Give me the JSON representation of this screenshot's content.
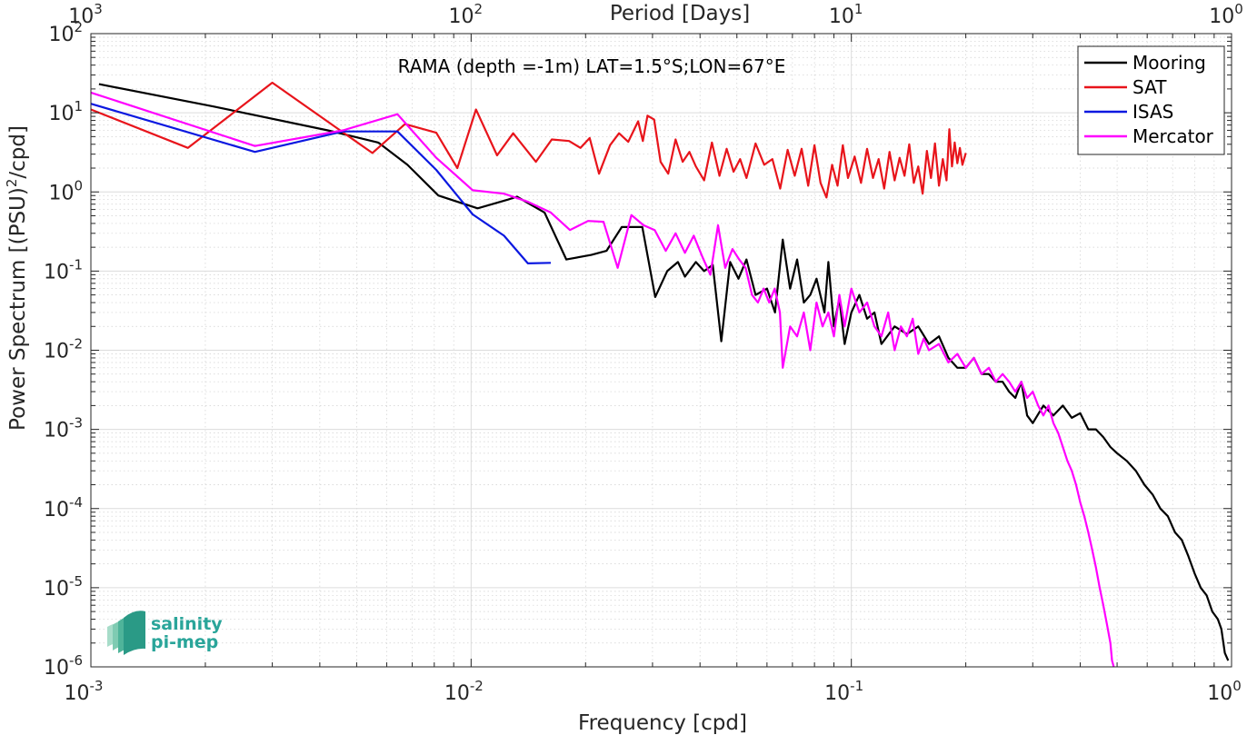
{
  "chart_data": {
    "type": "line",
    "title": "RAMA (depth =-1m) LAT=1.5°S;LON=67°E",
    "xlabel": "Frequency [cpd]",
    "ylabel": "Power Spectrum [(PSU)²/cpd]",
    "ylabel_parts": {
      "pre": "Power Spectrum [(PSU)",
      "sup": "2",
      "post": "/cpd]"
    },
    "top_xlabel": "Period [Days]",
    "xscale": "log",
    "yscale": "log",
    "xlim": [
      0.001,
      1
    ],
    "ylim": [
      1e-06,
      100
    ],
    "grid": true,
    "legend_position": "top-right",
    "x_ticks": [
      {
        "value": 0.001,
        "base": "10",
        "exp": "-3"
      },
      {
        "value": 0.01,
        "base": "10",
        "exp": "-2"
      },
      {
        "value": 0.1,
        "base": "10",
        "exp": "-1"
      },
      {
        "value": 1,
        "base": "10",
        "exp": "0"
      }
    ],
    "top_ticks": [
      {
        "value": 0.001,
        "base": "10",
        "exp": "3"
      },
      {
        "value": 0.01,
        "base": "10",
        "exp": "2"
      },
      {
        "value": 0.1,
        "base": "10",
        "exp": "1"
      },
      {
        "value": 1,
        "base": "10",
        "exp": "0"
      }
    ],
    "y_ticks": [
      {
        "value": 1e-06,
        "base": "10",
        "exp": "-6"
      },
      {
        "value": 1e-05,
        "base": "10",
        "exp": "-5"
      },
      {
        "value": 0.0001,
        "base": "10",
        "exp": "-4"
      },
      {
        "value": 0.001,
        "base": "10",
        "exp": "-3"
      },
      {
        "value": 0.01,
        "base": "10",
        "exp": "-2"
      },
      {
        "value": 0.1,
        "base": "10",
        "exp": "-1"
      },
      {
        "value": 1,
        "base": "10",
        "exp": "0"
      },
      {
        "value": 10,
        "base": "10",
        "exp": "1"
      },
      {
        "value": 100,
        "base": "10",
        "exp": "2"
      }
    ],
    "series": [
      {
        "name": "Mooring",
        "color": "#000000",
        "points": [
          [
            0.00105,
            23
          ],
          [
            0.0021,
            12
          ],
          [
            0.0042,
            6
          ],
          [
            0.0057,
            4.2
          ],
          [
            0.0068,
            2.2
          ],
          [
            0.0082,
            0.9
          ],
          [
            0.0104,
            0.62
          ],
          [
            0.0125,
            0.8
          ],
          [
            0.0132,
            0.87
          ],
          [
            0.0156,
            0.55
          ],
          [
            0.0178,
            0.14
          ],
          [
            0.0207,
            0.16
          ],
          [
            0.0227,
            0.18
          ],
          [
            0.0249,
            0.36
          ],
          [
            0.0282,
            0.36
          ],
          [
            0.0305,
            0.047
          ],
          [
            0.0328,
            0.1
          ],
          [
            0.035,
            0.13
          ],
          [
            0.0365,
            0.085
          ],
          [
            0.039,
            0.13
          ],
          [
            0.041,
            0.1
          ],
          [
            0.0432,
            0.12
          ],
          [
            0.0455,
            0.013
          ],
          [
            0.048,
            0.13
          ],
          [
            0.0505,
            0.08
          ],
          [
            0.053,
            0.14
          ],
          [
            0.056,
            0.05
          ],
          [
            0.06,
            0.06
          ],
          [
            0.063,
            0.03
          ],
          [
            0.066,
            0.25
          ],
          [
            0.069,
            0.06
          ],
          [
            0.072,
            0.14
          ],
          [
            0.075,
            0.04
          ],
          [
            0.078,
            0.05
          ],
          [
            0.081,
            0.08
          ],
          [
            0.085,
            0.03
          ],
          [
            0.087,
            0.13
          ],
          [
            0.09,
            0.02
          ],
          [
            0.093,
            0.045
          ],
          [
            0.096,
            0.012
          ],
          [
            0.1,
            0.03
          ],
          [
            0.105,
            0.05
          ],
          [
            0.11,
            0.025
          ],
          [
            0.115,
            0.03
          ],
          [
            0.12,
            0.012
          ],
          [
            0.13,
            0.02
          ],
          [
            0.14,
            0.016
          ],
          [
            0.15,
            0.02
          ],
          [
            0.16,
            0.012
          ],
          [
            0.17,
            0.015
          ],
          [
            0.18,
            0.008
          ],
          [
            0.19,
            0.006
          ],
          [
            0.2,
            0.006
          ],
          [
            0.21,
            0.008
          ],
          [
            0.22,
            0.005
          ],
          [
            0.23,
            0.005
          ],
          [
            0.24,
            0.004
          ],
          [
            0.25,
            0.004
          ],
          [
            0.26,
            0.003
          ],
          [
            0.27,
            0.0025
          ],
          [
            0.28,
            0.004
          ],
          [
            0.29,
            0.0015
          ],
          [
            0.3,
            0.0012
          ],
          [
            0.32,
            0.002
          ],
          [
            0.34,
            0.0015
          ],
          [
            0.36,
            0.002
          ],
          [
            0.38,
            0.0014
          ],
          [
            0.4,
            0.0016
          ],
          [
            0.42,
            0.001
          ],
          [
            0.44,
            0.001
          ],
          [
            0.46,
            0.0008
          ],
          [
            0.48,
            0.0006
          ],
          [
            0.5,
            0.0005
          ],
          [
            0.53,
            0.0004
          ],
          [
            0.56,
            0.0003
          ],
          [
            0.59,
            0.0002
          ],
          [
            0.62,
            0.00015
          ],
          [
            0.65,
            0.0001
          ],
          [
            0.68,
            8e-05
          ],
          [
            0.71,
            5e-05
          ],
          [
            0.74,
            4e-05
          ],
          [
            0.77,
            2.5e-05
          ],
          [
            0.8,
            1.5e-05
          ],
          [
            0.83,
            1e-05
          ],
          [
            0.86,
            8e-06
          ],
          [
            0.89,
            5e-06
          ],
          [
            0.92,
            4e-06
          ],
          [
            0.94,
            3e-06
          ],
          [
            0.96,
            1.5e-06
          ],
          [
            0.98,
            1.2e-06
          ]
        ]
      },
      {
        "name": "SAT",
        "color": "#e8141b",
        "points": [
          [
            0.001,
            11
          ],
          [
            0.0018,
            3.6
          ],
          [
            0.003,
            24
          ],
          [
            0.0055,
            3.1
          ],
          [
            0.0067,
            7.2
          ],
          [
            0.0081,
            5.6
          ],
          [
            0.0092,
            2
          ],
          [
            0.0103,
            11
          ],
          [
            0.0117,
            2.9
          ],
          [
            0.0129,
            5.5
          ],
          [
            0.0148,
            2.4
          ],
          [
            0.0163,
            4.6
          ],
          [
            0.0181,
            4.4
          ],
          [
            0.0194,
            3.6
          ],
          [
            0.0205,
            4.8
          ],
          [
            0.0217,
            1.7
          ],
          [
            0.0232,
            3.9
          ],
          [
            0.0245,
            5.5
          ],
          [
            0.0259,
            4.3
          ],
          [
            0.0275,
            7.8
          ],
          [
            0.0283,
            4.4
          ],
          [
            0.0291,
            9.2
          ],
          [
            0.0303,
            8.2
          ],
          [
            0.0315,
            2.4
          ],
          [
            0.033,
            1.7
          ],
          [
            0.0345,
            4.6
          ],
          [
            0.036,
            2.4
          ],
          [
            0.0375,
            3.2
          ],
          [
            0.039,
            2.1
          ],
          [
            0.041,
            1.4
          ],
          [
            0.043,
            4.2
          ],
          [
            0.045,
            1.6
          ],
          [
            0.047,
            3.5
          ],
          [
            0.049,
            1.8
          ],
          [
            0.051,
            2.6
          ],
          [
            0.053,
            1.5
          ],
          [
            0.056,
            4.1
          ],
          [
            0.059,
            2.2
          ],
          [
            0.062,
            2.6
          ],
          [
            0.065,
            1.1
          ],
          [
            0.068,
            3.4
          ],
          [
            0.071,
            1.6
          ],
          [
            0.074,
            3.5
          ],
          [
            0.077,
            1.2
          ],
          [
            0.08,
            3.9
          ],
          [
            0.083,
            1.3
          ],
          [
            0.086,
            0.85
          ],
          [
            0.089,
            2.2
          ],
          [
            0.092,
            1.2
          ],
          [
            0.095,
            3.9
          ],
          [
            0.098,
            1.5
          ],
          [
            0.102,
            2.8
          ],
          [
            0.106,
            1.3
          ],
          [
            0.11,
            3.5
          ],
          [
            0.114,
            1.5
          ],
          [
            0.118,
            2.6
          ],
          [
            0.122,
            1.1
          ],
          [
            0.126,
            3.2
          ],
          [
            0.13,
            1.4
          ],
          [
            0.134,
            2.7
          ],
          [
            0.138,
            1.6
          ],
          [
            0.142,
            4.0
          ],
          [
            0.146,
            1.3
          ],
          [
            0.15,
            2.1
          ],
          [
            0.154,
            0.95
          ],
          [
            0.158,
            3.3
          ],
          [
            0.162,
            1.5
          ],
          [
            0.166,
            4.1
          ],
          [
            0.17,
            1.2
          ],
          [
            0.174,
            2.6
          ],
          [
            0.178,
            1.4
          ],
          [
            0.181,
            6.2
          ],
          [
            0.184,
            2.1
          ],
          [
            0.187,
            4.2
          ],
          [
            0.19,
            2.3
          ],
          [
            0.193,
            3.6
          ],
          [
            0.196,
            2.2
          ],
          [
            0.2,
            3.1
          ]
        ]
      },
      {
        "name": "ISAS",
        "color": "#0b18e0",
        "points": [
          [
            0.001,
            13
          ],
          [
            0.0027,
            3.2
          ],
          [
            0.0046,
            5.8
          ],
          [
            0.0064,
            5.8
          ],
          [
            0.0081,
            1.9
          ],
          [
            0.0101,
            0.52
          ],
          [
            0.0122,
            0.28
          ],
          [
            0.0141,
            0.125
          ],
          [
            0.0162,
            0.127
          ]
        ]
      },
      {
        "name": "Mercator",
        "color": "#ff00ff",
        "points": [
          [
            0.001,
            18
          ],
          [
            0.0027,
            3.8
          ],
          [
            0.0046,
            6
          ],
          [
            0.0064,
            9.6
          ],
          [
            0.0081,
            2.7
          ],
          [
            0.0101,
            1.05
          ],
          [
            0.0122,
            0.95
          ],
          [
            0.0141,
            0.75
          ],
          [
            0.0162,
            0.55
          ],
          [
            0.0182,
            0.33
          ],
          [
            0.0203,
            0.43
          ],
          [
            0.0223,
            0.42
          ],
          [
            0.0243,
            0.11
          ],
          [
            0.0264,
            0.51
          ],
          [
            0.0284,
            0.38
          ],
          [
            0.0304,
            0.33
          ],
          [
            0.0325,
            0.18
          ],
          [
            0.0345,
            0.3
          ],
          [
            0.0365,
            0.17
          ],
          [
            0.0385,
            0.28
          ],
          [
            0.0406,
            0.15
          ],
          [
            0.0426,
            0.09
          ],
          [
            0.0446,
            0.38
          ],
          [
            0.0466,
            0.11
          ],
          [
            0.0487,
            0.19
          ],
          [
            0.0507,
            0.14
          ],
          [
            0.0527,
            0.11
          ],
          [
            0.0548,
            0.05
          ],
          [
            0.0568,
            0.04
          ],
          [
            0.0588,
            0.06
          ],
          [
            0.0608,
            0.04
          ],
          [
            0.0629,
            0.06
          ],
          [
            0.0649,
            0.03
          ],
          [
            0.066,
            0.006
          ],
          [
            0.069,
            0.02
          ],
          [
            0.072,
            0.015
          ],
          [
            0.075,
            0.03
          ],
          [
            0.078,
            0.01
          ],
          [
            0.081,
            0.04
          ],
          [
            0.084,
            0.02
          ],
          [
            0.087,
            0.03
          ],
          [
            0.09,
            0.015
          ],
          [
            0.093,
            0.05
          ],
          [
            0.096,
            0.02
          ],
          [
            0.1,
            0.06
          ],
          [
            0.105,
            0.03
          ],
          [
            0.11,
            0.04
          ],
          [
            0.115,
            0.02
          ],
          [
            0.12,
            0.015
          ],
          [
            0.125,
            0.03
          ],
          [
            0.13,
            0.01
          ],
          [
            0.135,
            0.02
          ],
          [
            0.14,
            0.015
          ],
          [
            0.145,
            0.025
          ],
          [
            0.15,
            0.009
          ],
          [
            0.155,
            0.014
          ],
          [
            0.16,
            0.01
          ],
          [
            0.17,
            0.012
          ],
          [
            0.18,
            0.007
          ],
          [
            0.19,
            0.009
          ],
          [
            0.2,
            0.006
          ],
          [
            0.21,
            0.008
          ],
          [
            0.22,
            0.005
          ],
          [
            0.23,
            0.006
          ],
          [
            0.24,
            0.004
          ],
          [
            0.25,
            0.005
          ],
          [
            0.26,
            0.004
          ],
          [
            0.27,
            0.003
          ],
          [
            0.28,
            0.004
          ],
          [
            0.29,
            0.0025
          ],
          [
            0.3,
            0.003
          ],
          [
            0.31,
            0.002
          ],
          [
            0.32,
            0.0015
          ],
          [
            0.33,
            0.002
          ],
          [
            0.34,
            0.0012
          ],
          [
            0.35,
            0.0009
          ],
          [
            0.36,
            0.0006
          ],
          [
            0.37,
            0.0004
          ],
          [
            0.38,
            0.0003
          ],
          [
            0.39,
            0.0002
          ],
          [
            0.4,
            0.00012
          ],
          [
            0.41,
            8e-05
          ],
          [
            0.42,
            5e-05
          ],
          [
            0.43,
            3e-05
          ],
          [
            0.44,
            1.8e-05
          ],
          [
            0.45,
            1e-05
          ],
          [
            0.46,
            6e-06
          ],
          [
            0.47,
            3.5e-06
          ],
          [
            0.48,
            2e-06
          ],
          [
            0.485,
            1.2e-06
          ],
          [
            0.49,
            1e-06
          ]
        ]
      }
    ]
  },
  "watermark": {
    "line1": "salinity",
    "line2": "pi-mep"
  }
}
